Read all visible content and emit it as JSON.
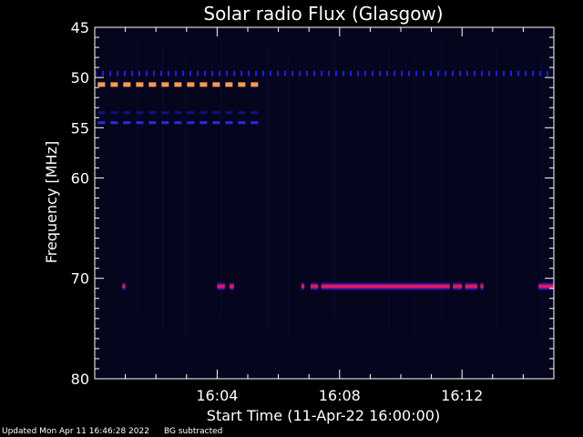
{
  "chart_data": {
    "type": "heatmap",
    "title": "Solar radio Flux (Glasgow)",
    "xlabel": "Start Time (11-Apr-22 16:00:00)",
    "ylabel": "Frequency [MHz]",
    "x_unit": "minutes after 16:00 UT",
    "xlim": [
      0,
      15
    ],
    "ylim": [
      45,
      80
    ],
    "y_scale": "inverted",
    "x_ticks": [
      {
        "value": 4,
        "label": "16:04"
      },
      {
        "value": 8,
        "label": "16:08"
      },
      {
        "value": 12,
        "label": "16:12"
      }
    ],
    "y_ticks": [
      {
        "value": 45,
        "label": "45"
      },
      {
        "value": 50,
        "label": "50"
      },
      {
        "value": 55,
        "label": "55"
      },
      {
        "value": 60,
        "label": "60"
      },
      {
        "value": 70,
        "label": "70"
      },
      {
        "value": 80,
        "label": "80"
      }
    ],
    "emission_bands": [
      {
        "freq": 49.6,
        "start": 0.0,
        "end": 15.0,
        "intensity": "low",
        "color": "#1c1ce6",
        "pattern": "dotted"
      },
      {
        "freq": 50.7,
        "start": 0.1,
        "end": 5.4,
        "intensity": "high",
        "color": "#ff9a50",
        "pattern": "dashed"
      },
      {
        "freq": 53.5,
        "start": 0.1,
        "end": 5.4,
        "intensity": "very low",
        "color": "#101080",
        "pattern": "dashed"
      },
      {
        "freq": 54.5,
        "start": 0.1,
        "end": 5.4,
        "intensity": "low",
        "color": "#2a2ae8",
        "pattern": "dashed"
      },
      {
        "freq": 70.8,
        "start": 0.9,
        "end": 1.0,
        "intensity": "medium",
        "color": "#e01860",
        "pattern": "solid"
      },
      {
        "freq": 70.8,
        "start": 4.0,
        "end": 4.25,
        "intensity": "medium",
        "color": "#e01860",
        "pattern": "solid"
      },
      {
        "freq": 70.8,
        "start": 4.4,
        "end": 4.55,
        "intensity": "medium",
        "color": "#e01860",
        "pattern": "solid"
      },
      {
        "freq": 70.8,
        "start": 6.75,
        "end": 6.85,
        "intensity": "medium",
        "color": "#e01860",
        "pattern": "solid"
      },
      {
        "freq": 70.8,
        "start": 7.05,
        "end": 7.3,
        "intensity": "medium",
        "color": "#e01860",
        "pattern": "solid"
      },
      {
        "freq": 70.8,
        "start": 7.4,
        "end": 11.6,
        "intensity": "medium",
        "color": "#e01860",
        "pattern": "solid"
      },
      {
        "freq": 70.8,
        "start": 11.7,
        "end": 12.0,
        "intensity": "medium",
        "color": "#e01860",
        "pattern": "solid"
      },
      {
        "freq": 70.8,
        "start": 12.1,
        "end": 12.5,
        "intensity": "medium",
        "color": "#e01860",
        "pattern": "solid"
      },
      {
        "freq": 70.8,
        "start": 12.6,
        "end": 12.7,
        "intensity": "medium",
        "color": "#e01860",
        "pattern": "solid"
      },
      {
        "freq": 70.8,
        "start": 14.5,
        "end": 15.0,
        "intensity": "medium",
        "color": "#e01860",
        "pattern": "solid"
      }
    ],
    "background_color": "#05051e"
  },
  "footer": {
    "updated": "Updated Mon Apr 11 16:46:28 2022",
    "note": "BG subtracted"
  }
}
